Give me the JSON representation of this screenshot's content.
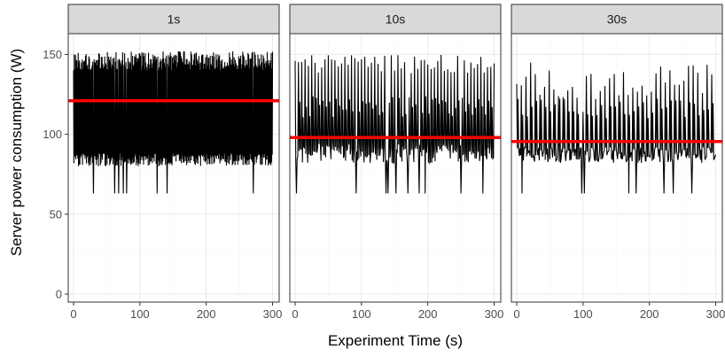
{
  "chart_data": {
    "type": "line",
    "layout": "faceted",
    "xlabel": "Experiment Time (s)",
    "ylabel": "Server power consumption (W)",
    "xlim": [
      -8,
      310
    ],
    "ylim": [
      -5,
      163
    ],
    "x_ticks": [
      0,
      100,
      200,
      300
    ],
    "y_ticks": [
      0,
      50,
      100,
      150
    ],
    "grid": true,
    "colors": {
      "series": "#000000",
      "mean": "#ff0000",
      "strip": "#d9d9d9"
    },
    "panels": [
      {
        "label": "1s",
        "interval_s": 1,
        "mean": 121,
        "range": {
          "min": 63,
          "max": 154
        },
        "base_band": [
          80,
          88
        ],
        "spike_band": [
          140,
          152
        ],
        "dips": [
          {
            "x": 30,
            "y": 63
          },
          {
            "x": 62,
            "y": 63
          },
          {
            "x": 68,
            "y": 63
          },
          {
            "x": 75,
            "y": 63
          },
          {
            "x": 80,
            "y": 63
          },
          {
            "x": 126,
            "y": 63
          },
          {
            "x": 141,
            "y": 63
          },
          {
            "x": 271,
            "y": 63
          }
        ]
      },
      {
        "label": "10s",
        "interval_s": 10,
        "mean": 98,
        "range": {
          "min": 63,
          "max": 150
        },
        "base_band": [
          82,
          94
        ],
        "spike_band": [
          138,
          150
        ],
        "dips": [
          {
            "x": 2,
            "y": 63
          },
          {
            "x": 92,
            "y": 63
          },
          {
            "x": 137,
            "y": 63
          },
          {
            "x": 140,
            "y": 63
          },
          {
            "x": 152,
            "y": 63
          },
          {
            "x": 170,
            "y": 63
          },
          {
            "x": 187,
            "y": 63
          },
          {
            "x": 196,
            "y": 63
          },
          {
            "x": 250,
            "y": 63
          },
          {
            "x": 283,
            "y": 63
          }
        ]
      },
      {
        "label": "30s",
        "interval_s": 30,
        "mean": 95.5,
        "range": {
          "min": 63,
          "max": 146
        },
        "base_band": [
          82,
          92
        ],
        "spike_band": [
          122,
          146
        ],
        "dips": [
          {
            "x": 8,
            "y": 63
          },
          {
            "x": 98,
            "y": 63
          },
          {
            "x": 102,
            "y": 63
          },
          {
            "x": 169,
            "y": 63
          },
          {
            "x": 180,
            "y": 63
          },
          {
            "x": 222,
            "y": 63
          },
          {
            "x": 236,
            "y": 63
          },
          {
            "x": 264,
            "y": 63
          }
        ]
      }
    ]
  }
}
